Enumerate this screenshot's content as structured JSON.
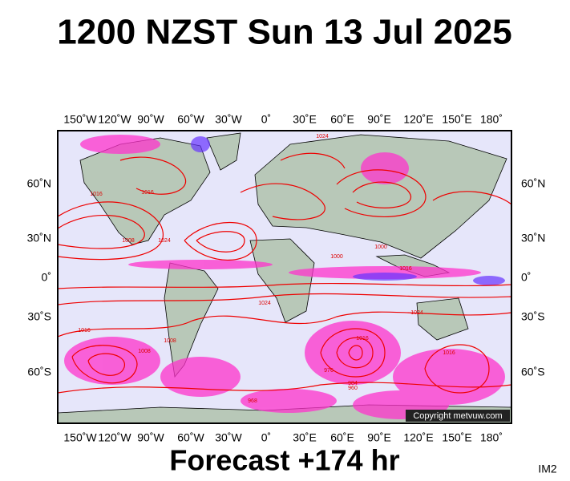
{
  "title": "1200 NZST Sun 13 Jul 2025",
  "longitude_labels": [
    "150˚W",
    "120˚W",
    "90˚W",
    "60˚W",
    "30˚W",
    "0˚",
    "30˚E",
    "60˚E",
    "90˚E",
    "120˚E",
    "150˚E",
    "180˚"
  ],
  "latitude_labels": [
    "60˚N",
    "30˚N",
    "0˚",
    "30˚S",
    "60˚S"
  ],
  "isobar_labels": [
    "1024",
    "1016",
    "1008",
    "1016",
    "1024",
    "1016",
    "1008",
    "1000",
    "1016",
    "1024",
    "1016",
    "1008",
    "1000",
    "984",
    "976",
    "968",
    "960",
    "1016",
    "1024"
  ],
  "copyright": "Copyright metvuw.com",
  "forecast": "Forecast +174 hr",
  "image_id": "IM2"
}
